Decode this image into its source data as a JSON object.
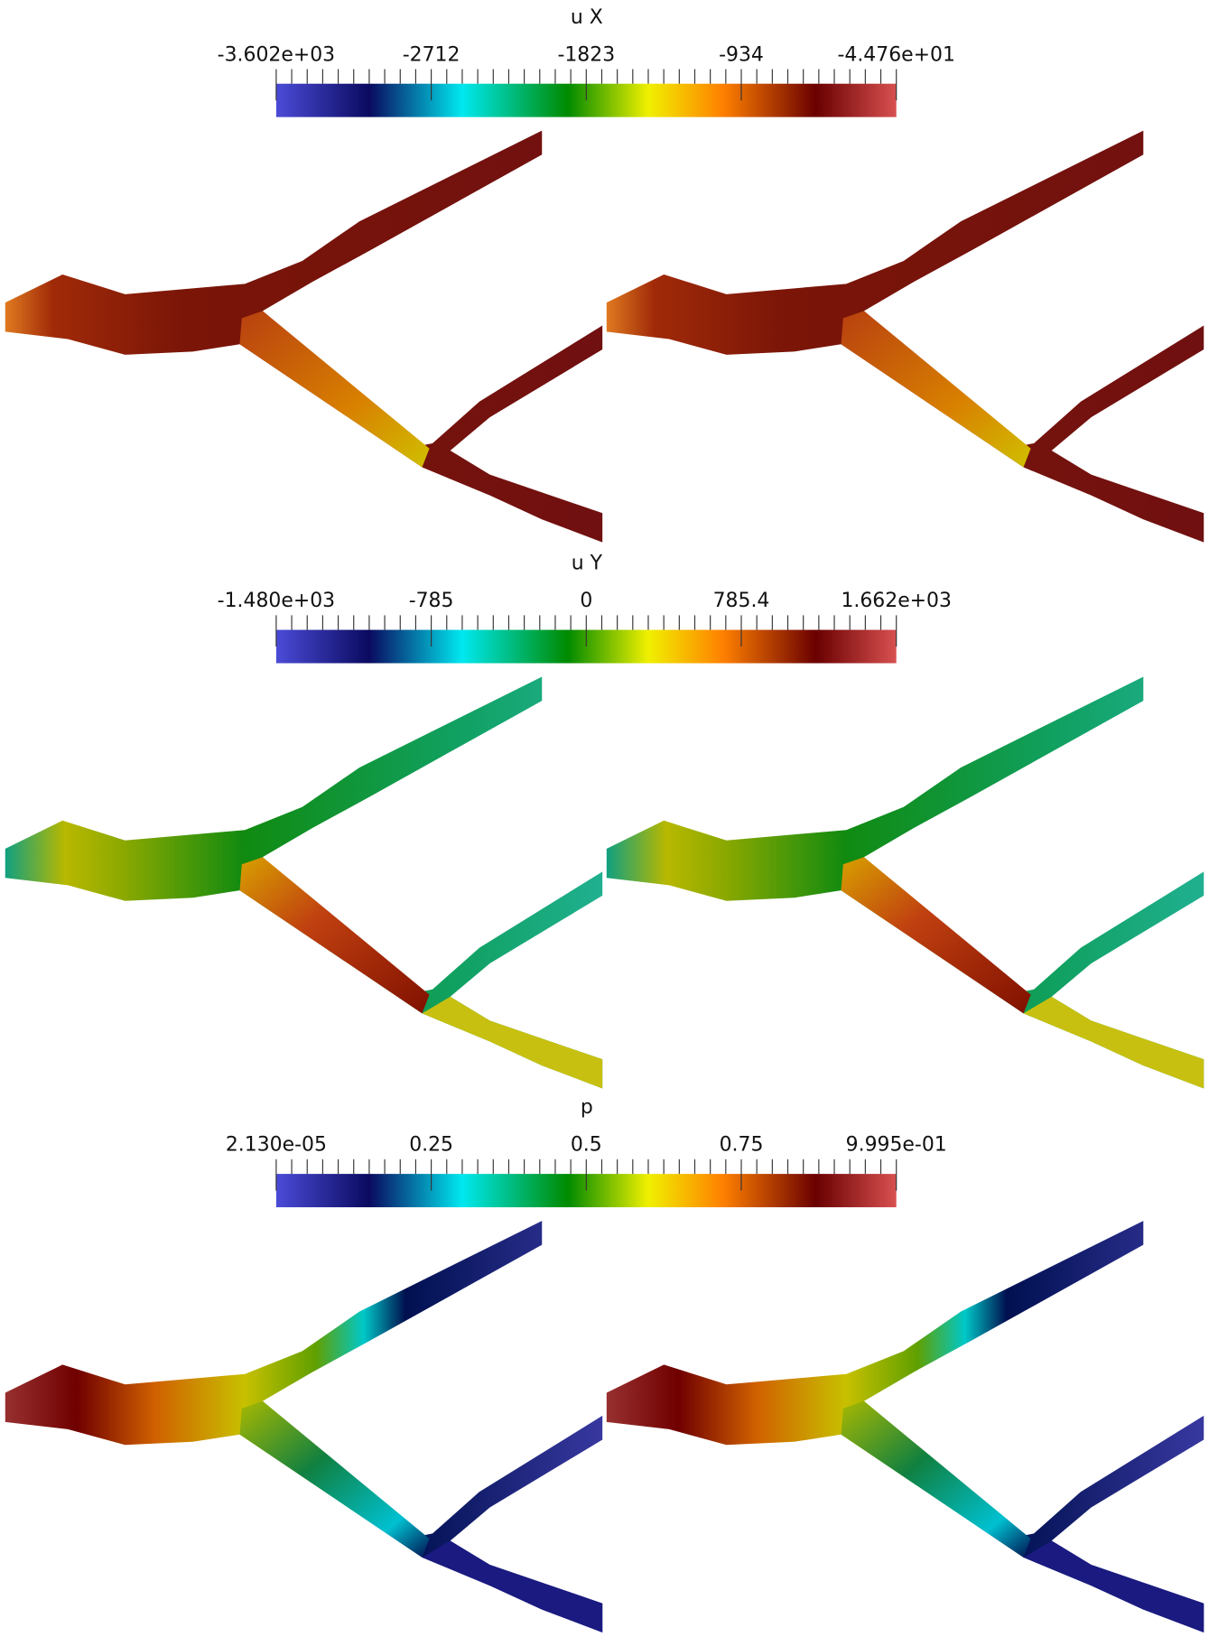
{
  "panels": [
    {
      "title": "u X",
      "colorbar_labels": [
        "-3.602e+03",
        "-2712",
        "-1823",
        "-934",
        "-4.476e+01"
      ]
    },
    {
      "title": "u Y",
      "colorbar_labels": [
        "-1.480e+03",
        "-785",
        "0",
        "785.4",
        "1.662e+03"
      ]
    },
    {
      "title": "p",
      "colorbar_labels": [
        "2.130e-05",
        "0.25",
        "0.5",
        "0.75",
        "9.995e-01"
      ]
    }
  ]
}
